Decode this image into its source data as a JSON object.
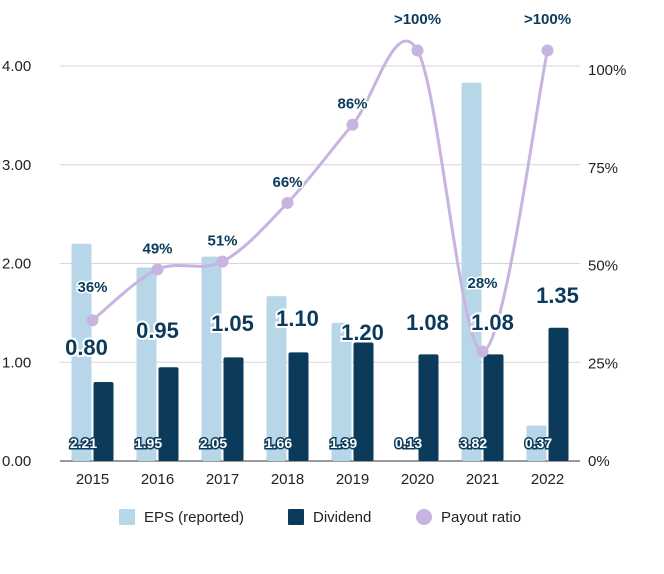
{
  "chart_data": {
    "type": "bar",
    "categories": [
      "2015",
      "2016",
      "2017",
      "2018",
      "2019",
      "2020",
      "2021",
      "2022"
    ],
    "series": [
      {
        "name": "EPS (reported)",
        "kind": "bar",
        "color": "#b7d7e8",
        "values": [
          2.21,
          1.95,
          2.05,
          1.66,
          1.39,
          0.13,
          3.82,
          0.37
        ],
        "labels": [
          "2.21",
          "1.95",
          "2.05",
          "1.66",
          "1.39",
          "0.13",
          "3.82",
          "0.37"
        ],
        "heights": [
          2.2,
          1.96,
          2.07,
          1.67,
          1.4,
          0.0,
          3.83,
          0.36
        ]
      },
      {
        "name": "Dividend",
        "kind": "bar",
        "color": "#0b3a5b",
        "values": [
          0.8,
          0.95,
          1.05,
          1.1,
          1.2,
          1.08,
          1.08,
          1.35
        ],
        "labels": [
          "0.80",
          "0.95",
          "1.05",
          "1.10",
          "1.20",
          "1.08",
          "1.08",
          "1.35"
        ]
      },
      {
        "name": "Payout ratio",
        "kind": "line",
        "axis": "right",
        "color": "#c8b4e0",
        "values": [
          36,
          49,
          51,
          66,
          86,
          105,
          28,
          105
        ],
        "labels": [
          "36%",
          "49%",
          "51%",
          "66%",
          "86%",
          ">100%",
          "28%",
          ">100%"
        ]
      }
    ],
    "y_left": {
      "ylim": [
        0,
        4.0
      ],
      "ticks": [
        "0.00",
        "1.00",
        "2.00",
        "3.00",
        "4.00"
      ]
    },
    "y_right": {
      "ylim": [
        0,
        100
      ],
      "ticks": [
        "0%",
        "25%",
        "50%",
        "75%",
        "100%"
      ]
    },
    "grid": true,
    "legend_position": "bottom"
  }
}
